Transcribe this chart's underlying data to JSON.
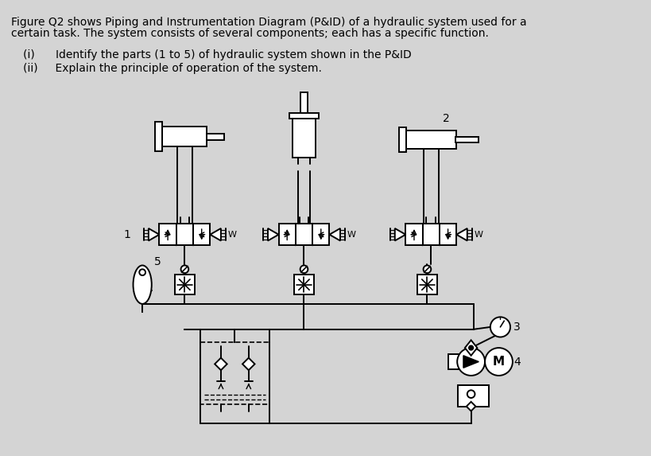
{
  "bg_color": "#d4d4d4",
  "text_color": "#000000",
  "title_line1": "Figure Q2 shows Piping and Instrumentation Diagram (P&ID) of a hydraulic system used for a",
  "title_line2": "certain task. The system consists of several components; each has a specific function.",
  "q1": "(i)      Identify the parts (1 to 5) of hydraulic system shown in the P&ID",
  "q2": "(ii)     Explain the principle of operation of the system.",
  "label_1": "1",
  "label_2": "2",
  "label_3": "3",
  "label_4": "4",
  "label_5": "5",
  "label_W": "W",
  "label_M": "M",
  "font_title": 10,
  "font_label": 9
}
